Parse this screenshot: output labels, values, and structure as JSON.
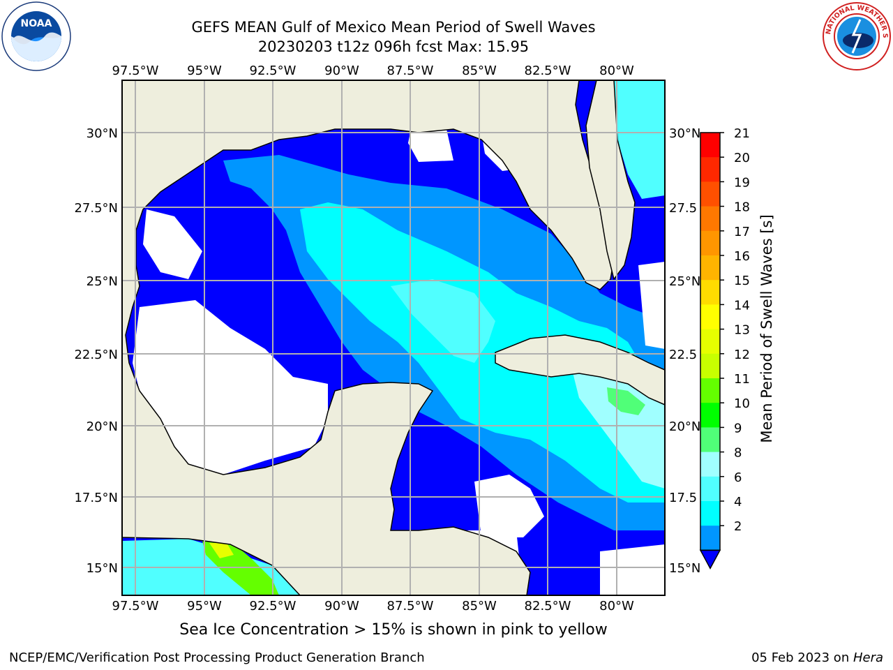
{
  "header": {
    "title": "GEFS MEAN Gulf of Mexico Mean Period of Swell Waves",
    "subtitle": "20230203 t12z 096h fcst   Max: 15.95"
  },
  "logos": {
    "left": "NOAA",
    "right_text": "NATIONAL WEATHER SERVICE"
  },
  "map": {
    "lon_labels": [
      "97.5°W",
      "95°W",
      "92.5°W",
      "90°W",
      "87.5°W",
      "85°W",
      "82.5°W",
      "80°W"
    ],
    "lat_labels_left": [
      "30°N",
      "27.5°N",
      "25°N",
      "22.5°N",
      "20°N",
      "17.5°N",
      "15°N"
    ],
    "lat_labels_right": [
      "30°N",
      "27.5",
      "25°N",
      "22.5",
      "20°N",
      "17.5",
      "15°N"
    ],
    "colors": {
      "land": "#eeeedd",
      "no_data": "#ffffff",
      "grid": "#b0b0b0"
    }
  },
  "colorbar": {
    "label": "Mean Period of Swell Waves [s]",
    "ticks": [
      "21",
      "20",
      "19",
      "18",
      "17",
      "16",
      "15",
      "14",
      "13",
      "12",
      "11",
      "10",
      "9",
      "8",
      "6",
      "4",
      "2"
    ],
    "colors": [
      "#ff0000",
      "#ff2800",
      "#ff5000",
      "#ff7800",
      "#ff9600",
      "#ffb400",
      "#ffdc00",
      "#ffff00",
      "#e6ff00",
      "#c8ff00",
      "#64ff00",
      "#00ff00",
      "#50ff78",
      "#a0ffff",
      "#50ffff",
      "#00ffff",
      "#0096ff"
    ],
    "extend_color": "#0000ff"
  },
  "caption": "Sea Ice Concentration > 15% is shown in pink to yellow",
  "footer": {
    "left": "NCEP/EMC/Verification Post Processing Product Generation Branch",
    "right_prefix": "05 Feb 2023 on ",
    "right_italic": "Hera"
  }
}
